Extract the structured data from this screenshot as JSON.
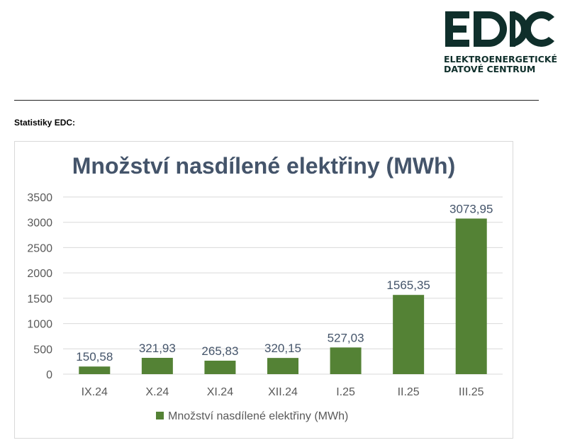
{
  "logo": {
    "mark_text": "EDC",
    "line1": "ELEKTROENERGETICKÉ",
    "line2": "DATOVÉ CENTRUM"
  },
  "section_label": "Statistiky EDC:",
  "colors": {
    "bar": "#548235",
    "title": "#44546a",
    "axis_text": "#595959",
    "grid": "#d9d9d9",
    "logo": "#0f2f2b"
  },
  "chart_data": {
    "type": "bar",
    "title": "Množství nasdílené elektřiny (MWh)",
    "categories": [
      "IX.24",
      "X.24",
      "XI.24",
      "XII.24",
      "I.25",
      "II.25",
      "III.25"
    ],
    "series": [
      {
        "name": "Množství nasdílené elektřiny (MWh)",
        "values": [
          150.58,
          321.93,
          265.83,
          320.15,
          527.03,
          1565.35,
          3073.95
        ],
        "labels": [
          "150,58",
          "321,93",
          "265,83",
          "320,15",
          "527,03",
          "1565,35",
          "3073,95"
        ]
      }
    ],
    "ylim": [
      0,
      3500
    ],
    "yticks": [
      "0",
      "500",
      "1000",
      "1500",
      "2000",
      "2500",
      "3000",
      "3500"
    ],
    "grid": true,
    "legend": "bottom"
  }
}
